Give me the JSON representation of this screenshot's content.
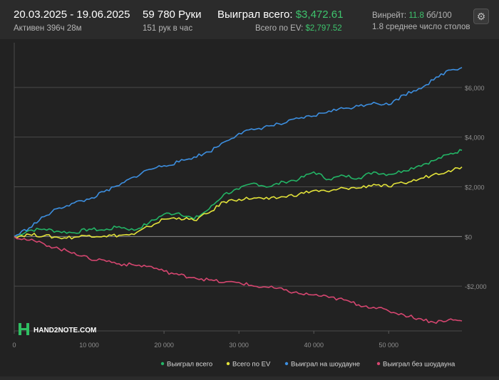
{
  "header": {
    "date_range": "20.03.2025 - 19.06.2025",
    "active_time": "Активен 396ч 28м",
    "hands": "59 780 Руки",
    "hands_per_hour": "151 рук в час",
    "won_total_label": "Выиграл всего:",
    "won_total_value": "$3,472.61",
    "ev_total_label": "Всего по EV:",
    "ev_total_value": "$2,797.52",
    "winrate_label": "Винрейт:",
    "winrate_value": "11.8",
    "winrate_unit": "бб/100",
    "avg_tables": "1.8 среднее число столов"
  },
  "settings_icon": "gear-icon",
  "logo_text": "HAND2NOTE.COM",
  "chart_data": {
    "type": "line",
    "xlim": [
      0,
      59780
    ],
    "ylim": [
      -3800,
      7800
    ],
    "x_ticks": [
      0,
      10000,
      20000,
      30000,
      40000,
      50000
    ],
    "x_tick_labels": [
      "0",
      "10 000",
      "20 000",
      "30 000",
      "40 000",
      "50 000"
    ],
    "y_ticks": [
      -2000,
      0,
      2000,
      4000,
      6000
    ],
    "y_tick_labels": [
      "-$2,000",
      "$0",
      "$2,000",
      "$4,000",
      "$6,000"
    ],
    "legend_position": "bottom-right",
    "series": [
      {
        "name": "Выиграл всего",
        "color": "#23b566",
        "x": [
          0,
          2000,
          4000,
          6000,
          8000,
          10000,
          12000,
          14000,
          16000,
          18000,
          20000,
          22000,
          24000,
          26000,
          28000,
          30000,
          32000,
          34000,
          36000,
          38000,
          40000,
          42000,
          44000,
          46000,
          48000,
          50000,
          52000,
          54000,
          56000,
          58000,
          59780
        ],
        "values": [
          0,
          250,
          300,
          200,
          150,
          300,
          250,
          400,
          250,
          550,
          900,
          950,
          700,
          1100,
          1700,
          1900,
          2150,
          2000,
          2200,
          2300,
          2600,
          2300,
          2450,
          2350,
          2600,
          2500,
          2650,
          2850,
          3050,
          3300,
          3470
        ]
      },
      {
        "name": "Всего по EV",
        "color": "#e3e33a",
        "x": [
          0,
          2000,
          4000,
          6000,
          8000,
          10000,
          12000,
          14000,
          16000,
          18000,
          20000,
          22000,
          24000,
          26000,
          28000,
          30000,
          32000,
          34000,
          36000,
          38000,
          40000,
          42000,
          44000,
          46000,
          48000,
          50000,
          52000,
          54000,
          56000,
          58000,
          59780
        ],
        "values": [
          0,
          80,
          30,
          -50,
          -30,
          50,
          20,
          50,
          80,
          400,
          700,
          750,
          650,
          950,
          1400,
          1500,
          1550,
          1500,
          1600,
          1700,
          1850,
          1800,
          1950,
          1950,
          2100,
          2000,
          2150,
          2300,
          2500,
          2650,
          2800
        ]
      },
      {
        "name": "Выиграл на шоудауне",
        "color": "#3d8fe0",
        "x": [
          0,
          2000,
          4000,
          6000,
          8000,
          10000,
          12000,
          14000,
          16000,
          18000,
          20000,
          22000,
          24000,
          26000,
          28000,
          30000,
          32000,
          34000,
          36000,
          38000,
          40000,
          42000,
          44000,
          46000,
          48000,
          50000,
          52000,
          54000,
          56000,
          58000,
          59780
        ],
        "values": [
          0,
          350,
          800,
          1150,
          1350,
          1500,
          1800,
          2050,
          2400,
          2700,
          2850,
          3000,
          3200,
          3400,
          3800,
          4150,
          4300,
          4450,
          4550,
          4750,
          4850,
          5050,
          5150,
          5250,
          5400,
          5300,
          5700,
          5950,
          6300,
          6700,
          6800
        ]
      },
      {
        "name": "Выиграл без шоудауна",
        "color": "#d64670",
        "x": [
          0,
          2000,
          4000,
          6000,
          8000,
          10000,
          12000,
          14000,
          16000,
          18000,
          20000,
          22000,
          24000,
          26000,
          28000,
          30000,
          32000,
          34000,
          36000,
          38000,
          40000,
          42000,
          44000,
          46000,
          48000,
          50000,
          52000,
          54000,
          56000,
          58000,
          59780
        ],
        "values": [
          0,
          -150,
          -300,
          -500,
          -650,
          -900,
          -950,
          -1100,
          -1150,
          -1200,
          -1400,
          -1550,
          -1650,
          -1750,
          -1850,
          -1850,
          -2000,
          -2050,
          -2150,
          -2300,
          -2350,
          -2450,
          -2550,
          -2750,
          -2850,
          -3000,
          -3150,
          -3300,
          -3450,
          -3350,
          -3400
        ]
      }
    ]
  }
}
